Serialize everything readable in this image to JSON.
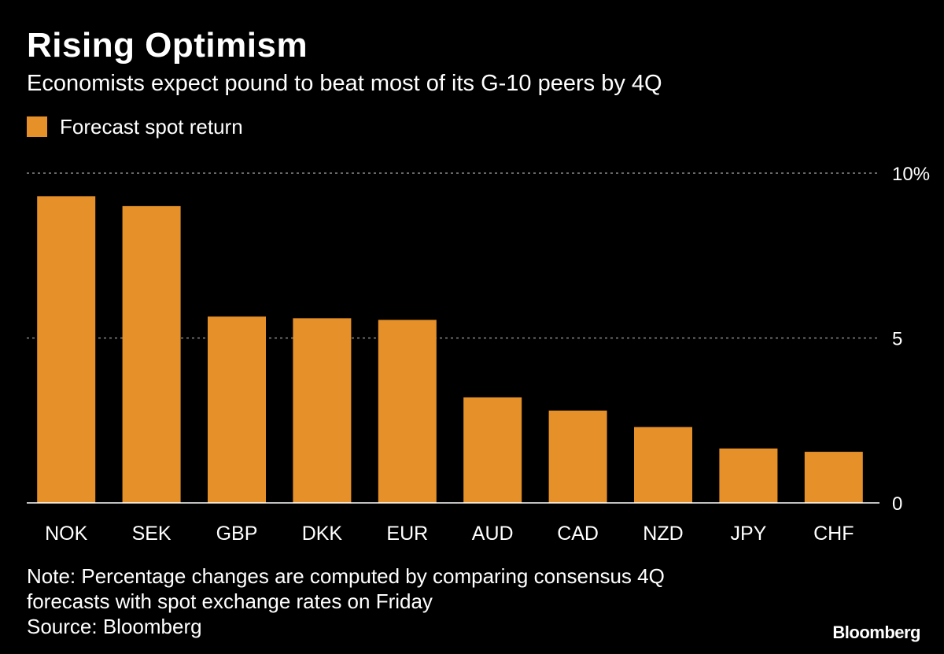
{
  "header": {
    "title": "Rising Optimism",
    "subtitle": "Economists expect pound to beat most of its G-10 peers by 4Q"
  },
  "legend": {
    "label": "Forecast spot return",
    "color": "#E6902A"
  },
  "footer": {
    "note_line1": "Note: Percentage changes are computed by comparing consensus 4Q",
    "note_line2": "forecasts with spot exchange rates on Friday",
    "source": "Source: Bloomberg",
    "brand": "Bloomberg"
  },
  "chart_data": {
    "type": "bar",
    "categories": [
      "NOK",
      "SEK",
      "GBP",
      "DKK",
      "EUR",
      "AUD",
      "CAD",
      "NZD",
      "JPY",
      "CHF"
    ],
    "series": [
      {
        "name": "Forecast spot return",
        "values": [
          9.3,
          9.0,
          5.65,
          5.6,
          5.55,
          3.2,
          2.8,
          2.3,
          1.65,
          1.55
        ]
      }
    ],
    "ylim": [
      0,
      10
    ],
    "yticks": [
      0,
      5,
      10
    ],
    "ytick_labels": [
      "0",
      "5",
      "10%"
    ],
    "grid": true,
    "legend_position": "top-left",
    "colors": {
      "bar": "#E6902A",
      "background": "#000000",
      "grid": "#8a8a8a",
      "text": "#ffffff",
      "axis": "#ffffff"
    }
  }
}
